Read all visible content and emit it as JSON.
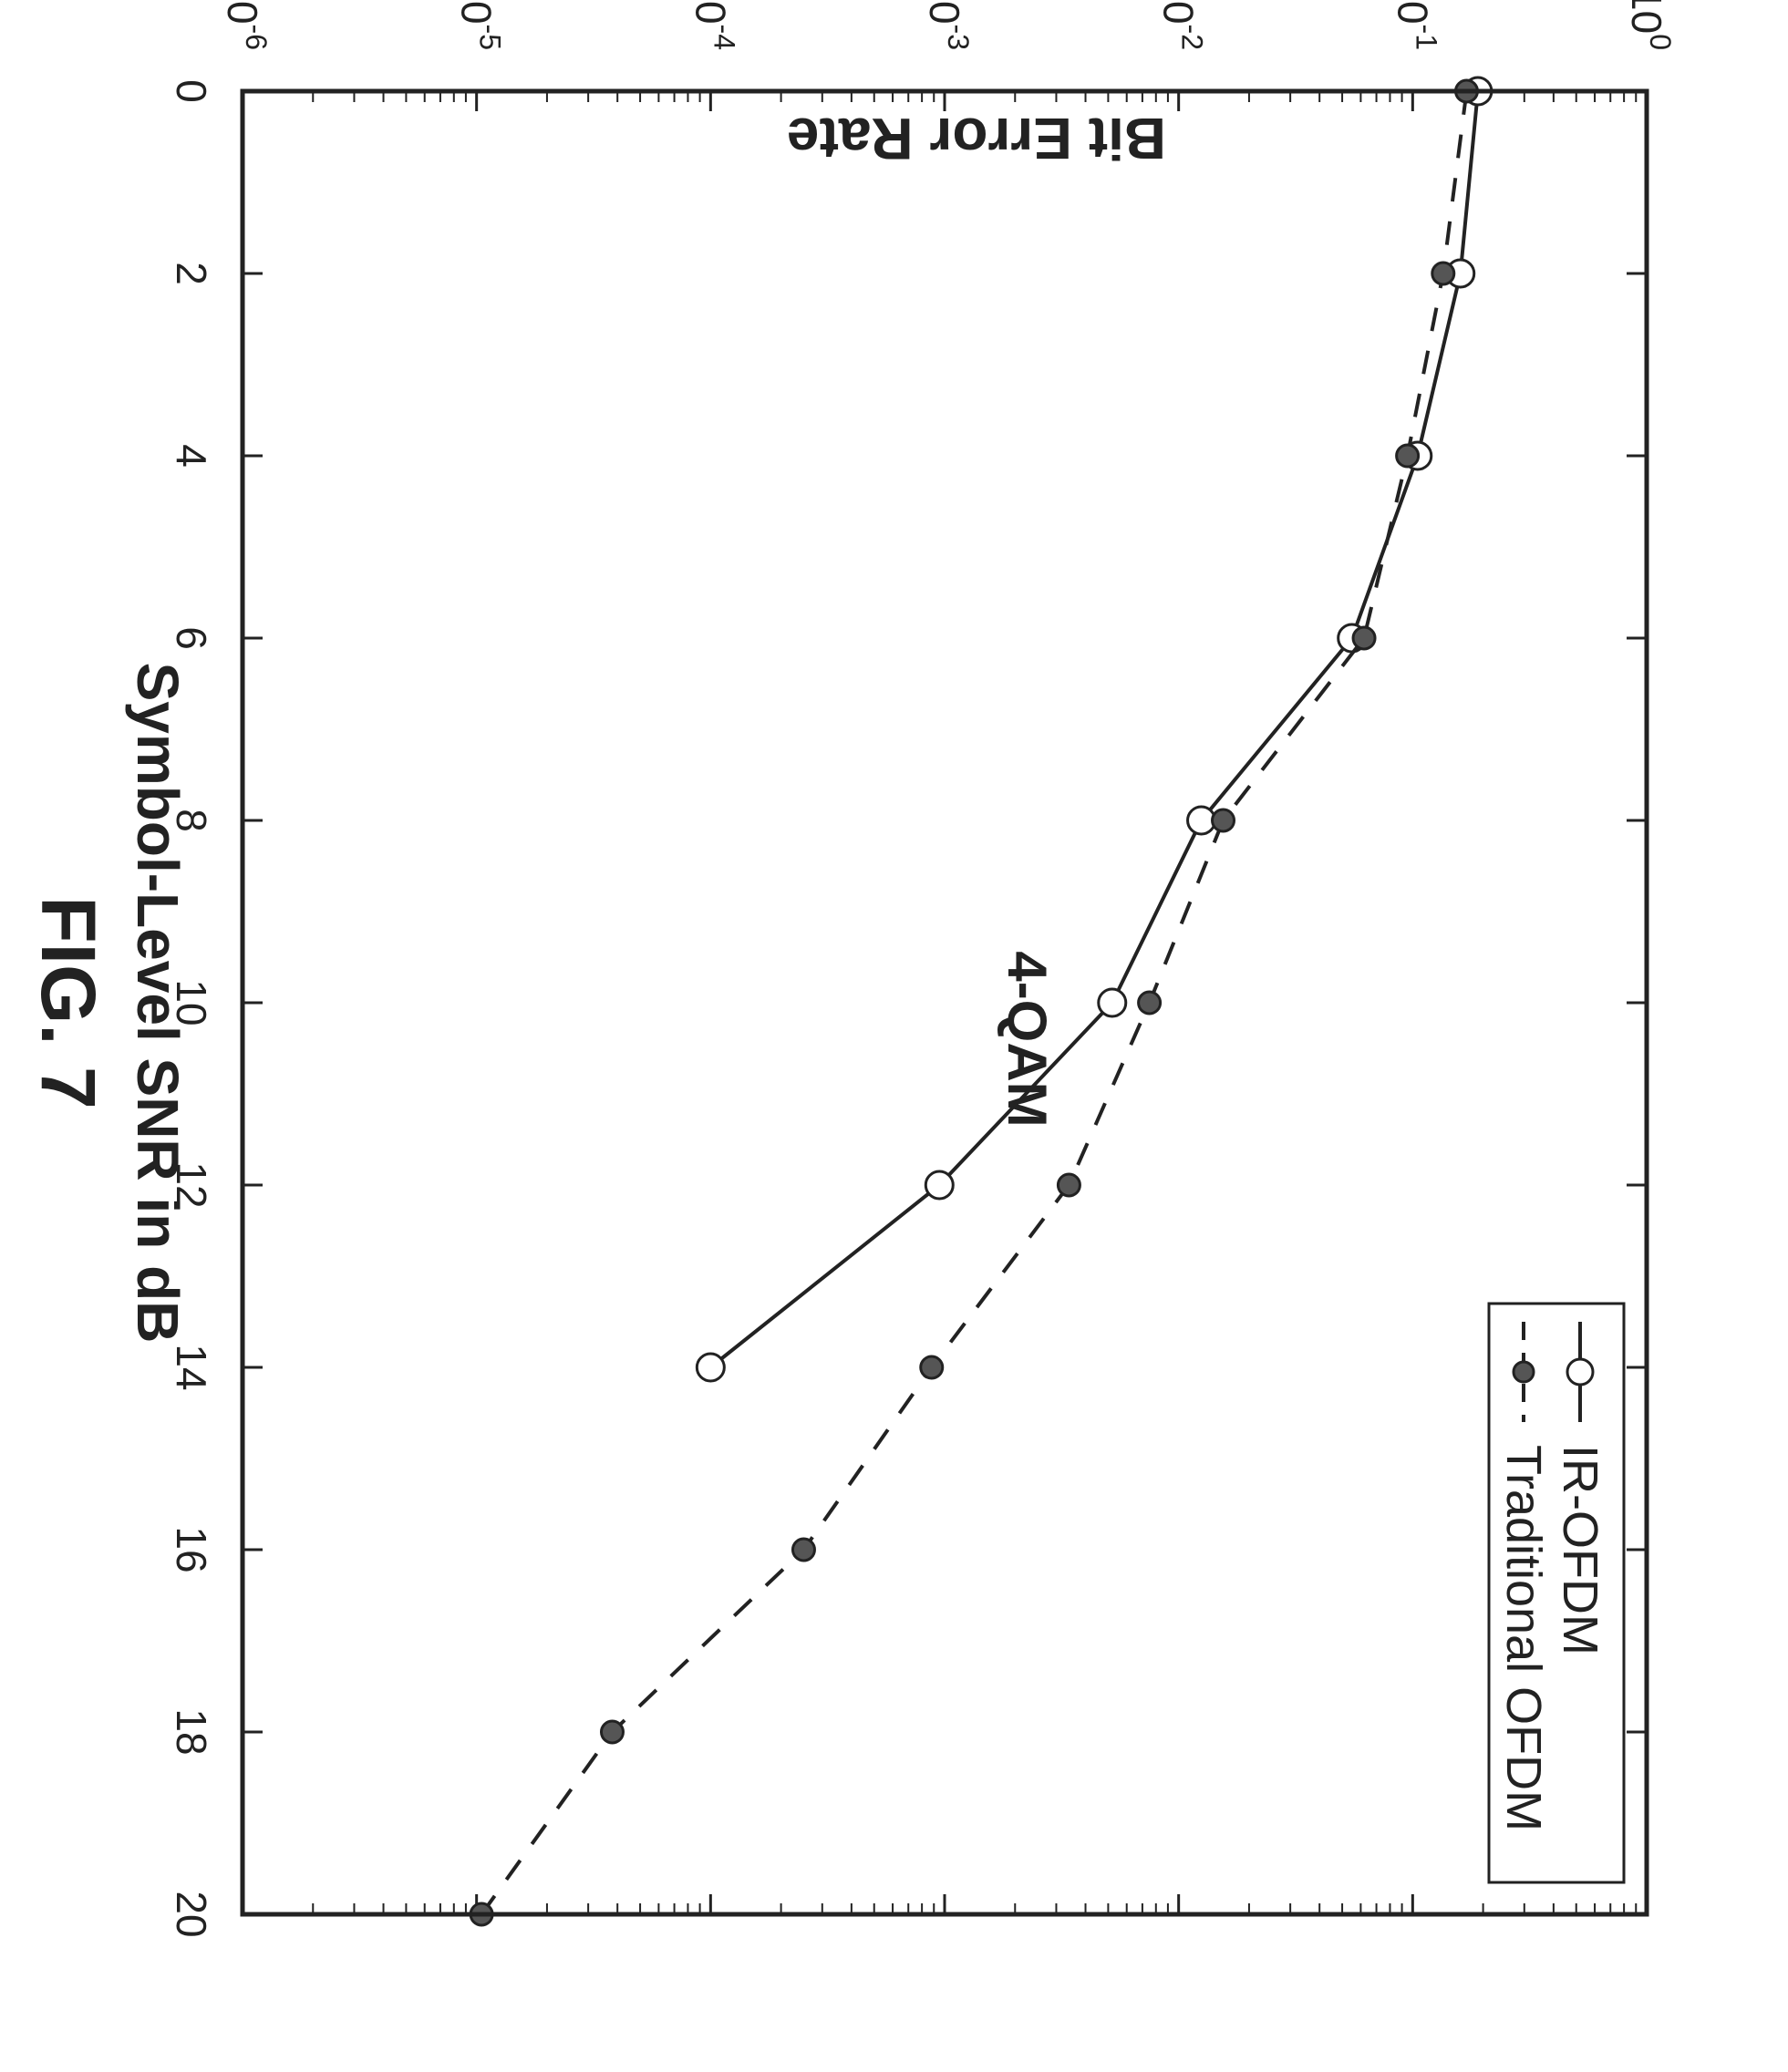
{
  "chart_data": {
    "type": "line",
    "title": "4-QAM",
    "xlabel": "Symbol-Level SNR in dB",
    "ylabel": "Bit Error Rate",
    "caption": "FIG. 7",
    "xlim": [
      0,
      20
    ],
    "ylim": [
      1e-06,
      1
    ],
    "yscale": "log",
    "xticks": [
      "0",
      "2",
      "4",
      "6",
      "8",
      "10",
      "12",
      "14",
      "16",
      "18",
      "20"
    ],
    "yticks": [
      {
        "base": "10",
        "exp": "0"
      },
      {
        "base": "10",
        "exp": "-1"
      },
      {
        "base": "10",
        "exp": "-2"
      },
      {
        "base": "10",
        "exp": "-3"
      },
      {
        "base": "10",
        "exp": "-4"
      },
      {
        "base": "10",
        "exp": "-5"
      },
      {
        "base": "10",
        "exp": "-6"
      }
    ],
    "legend_position": "top-right",
    "series": [
      {
        "name": "IR-OFDM",
        "style": "solid",
        "marker": "open-circle",
        "x": [
          0,
          2,
          4,
          6,
          8,
          10,
          12,
          14
        ],
        "y": [
          0.19,
          0.16,
          0.105,
          0.055,
          0.0125,
          0.0052,
          0.00095,
          0.0001
        ]
      },
      {
        "name": "Traditional OFDM",
        "style": "dashed",
        "marker": "filled-circle",
        "x": [
          0,
          2,
          4,
          6,
          8,
          10,
          12,
          14,
          16,
          18,
          20
        ],
        "y": [
          0.17,
          0.135,
          0.095,
          0.062,
          0.0155,
          0.0075,
          0.0034,
          0.00088,
          0.00025,
          3.8e-05,
          1.05e-05
        ]
      }
    ]
  },
  "colors": {
    "line": "#222222",
    "marker_fill": "#555555",
    "background": "#ffffff"
  }
}
